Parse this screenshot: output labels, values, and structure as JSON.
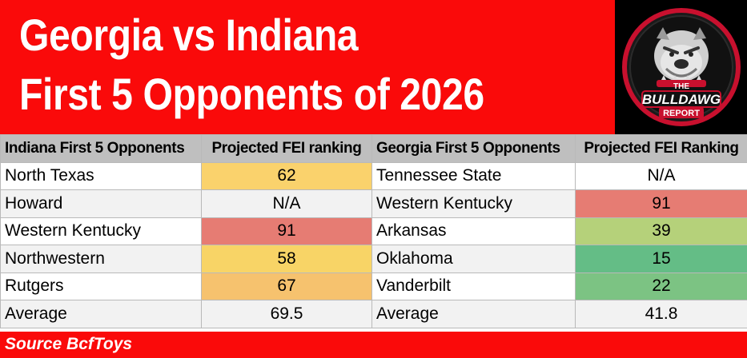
{
  "header": {
    "title_line1": "Georgia vs Indiana",
    "title_line2": "First 5 Opponents of 2026",
    "background_color": "#fa0a0a"
  },
  "logo": {
    "icon": "bulldog-logo",
    "text_the": "THE",
    "text_main": "BULLDAWG",
    "text_sub": "REPORT"
  },
  "table": {
    "headers": {
      "indiana_team": "Indiana First 5 Opponents",
      "indiana_fei": "Projected FEI ranking",
      "georgia_team": "Georgia First 5 Opponents",
      "georgia_fei": "Projected FEI Ranking"
    },
    "rows": [
      {
        "indiana_team": "North Texas",
        "indiana_fei": "62",
        "indiana_color": "#fad26c",
        "georgia_team": "Tennessee State",
        "georgia_fei": "N/A",
        "georgia_color": ""
      },
      {
        "indiana_team": "Howard",
        "indiana_fei": "N/A",
        "indiana_color": "",
        "georgia_team": "Western Kentucky",
        "georgia_fei": "91",
        "georgia_color": "#e67c73"
      },
      {
        "indiana_team": "Western Kentucky",
        "indiana_fei": "91",
        "indiana_color": "#e67c73",
        "georgia_team": "Arkansas",
        "georgia_fei": "39",
        "georgia_color": "#b5d17a"
      },
      {
        "indiana_team": "Northwestern",
        "indiana_fei": "58",
        "indiana_color": "#f8d466",
        "georgia_team": "Oklahoma",
        "georgia_fei": "15",
        "georgia_color": "#64bd86"
      },
      {
        "indiana_team": "Rutgers",
        "indiana_fei": "67",
        "indiana_color": "#f6c26e",
        "georgia_team": "Vanderbilt",
        "georgia_fei": "22",
        "georgia_color": "#7cc383"
      },
      {
        "indiana_team": "Average",
        "indiana_fei": "69.5",
        "indiana_color": "",
        "georgia_team": "Average",
        "georgia_fei": "41.8",
        "georgia_color": ""
      }
    ]
  },
  "footer": {
    "source": "Source BcfToys"
  }
}
